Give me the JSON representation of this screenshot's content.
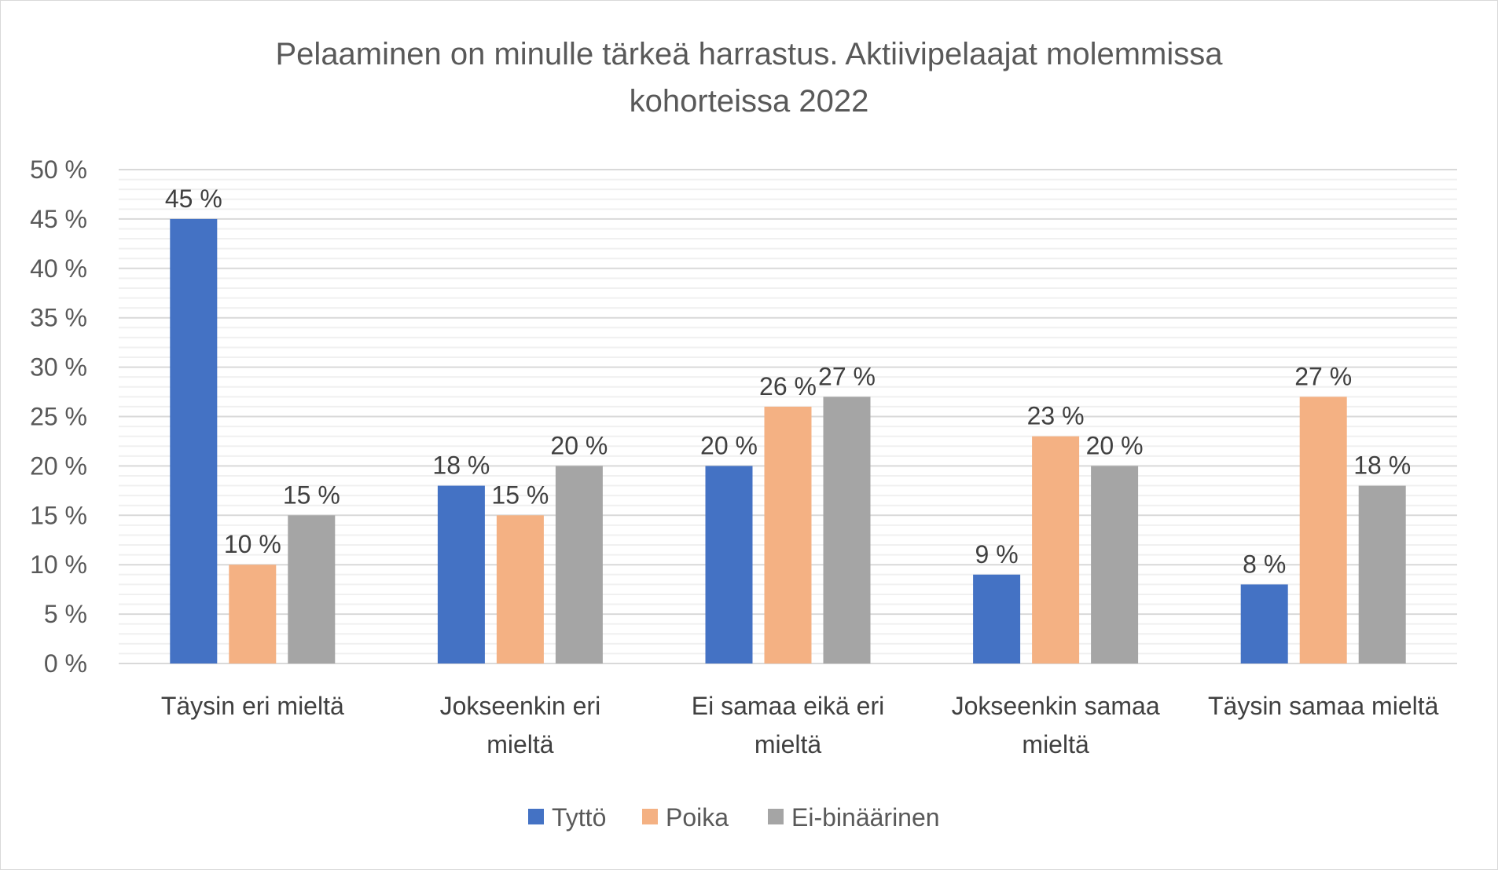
{
  "chart_data": {
    "type": "bar",
    "title": "Pelaaminen on minulle tärkeä harrastus. Aktiivipelaajat molemmissa kohorteissa 2022",
    "title_lines": [
      "Pelaaminen on minulle tärkeä harrastus. Aktiivipelaajat molemmissa",
      "kohorteissa 2022"
    ],
    "categories": [
      "Täysin eri mieltä",
      "Jokseenkin eri mieltä",
      "Ei samaa eikä eri mieltä",
      "Jokseenkin samaa mieltä",
      "Täysin samaa mieltä"
    ],
    "category_lines": [
      [
        "Täysin eri mieltä"
      ],
      [
        "Jokseenkin eri",
        "mieltä"
      ],
      [
        "Ei samaa eikä eri",
        "mieltä"
      ],
      [
        "Jokseenkin samaa",
        "mieltä"
      ],
      [
        "Täysin samaa mieltä"
      ]
    ],
    "series": [
      {
        "name": "Tyttö",
        "color": "#4472C4",
        "values": [
          45,
          18,
          20,
          9,
          8
        ]
      },
      {
        "name": "Poika",
        "color": "#F4B183",
        "values": [
          10,
          15,
          26,
          23,
          27
        ]
      },
      {
        "name": "Ei-binäärinen",
        "color": "#A5A5A5",
        "values": [
          15,
          20,
          27,
          20,
          18
        ]
      }
    ],
    "ylim": [
      0,
      50
    ],
    "yticks": [
      "0 %",
      "5 %",
      "10 %",
      "15 %",
      "20 %",
      "25 %",
      "30 %",
      "35 %",
      "40 %",
      "45 %",
      "50 %"
    ],
    "value_suffix": " %",
    "grid": true,
    "legend": "bottom",
    "xlabel": "",
    "ylabel": ""
  }
}
